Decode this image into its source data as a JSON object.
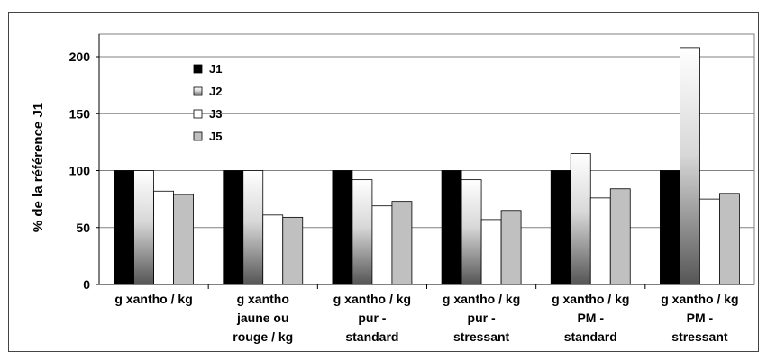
{
  "chart_data": {
    "type": "bar",
    "title": "",
    "xlabel": "",
    "ylabel": "% de la référence J1",
    "ylim": [
      0,
      200
    ],
    "yticks": [
      0,
      50,
      100,
      150,
      200
    ],
    "grid": true,
    "legend_position": "top-left",
    "categories": [
      [
        "g xantho / kg"
      ],
      [
        "g xantho",
        "jaune ou",
        "rouge / kg"
      ],
      [
        "g xantho / kg",
        "pur -",
        "standard"
      ],
      [
        "g xantho / kg",
        "pur -",
        "stressant"
      ],
      [
        "g xantho / kg",
        "PM -",
        "standard"
      ],
      [
        "g xantho / kg",
        "PM -",
        "stressant"
      ]
    ],
    "series": [
      {
        "name": "J1",
        "values": [
          100,
          100,
          100,
          100,
          100,
          100
        ]
      },
      {
        "name": "J2",
        "values": [
          100,
          100,
          92,
          92,
          115,
          208
        ]
      },
      {
        "name": "J3",
        "values": [
          82,
          61,
          69,
          57,
          76,
          75
        ]
      },
      {
        "name": "J5",
        "values": [
          79,
          59,
          73,
          65,
          84,
          80
        ]
      }
    ],
    "series_styles": [
      "solid-black",
      "gradient-gray",
      "white",
      "light-gray"
    ],
    "colors": {
      "J1": "#000000",
      "J2": "#808080",
      "J3": "#ffffff",
      "J5": "#c0c0c0"
    }
  }
}
